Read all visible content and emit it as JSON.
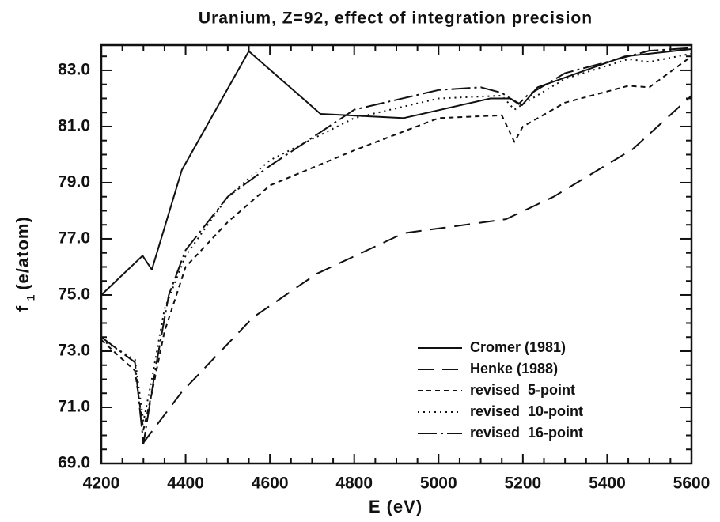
{
  "chart_data": {
    "type": "line",
    "title": "Uranium, Z=92, effect of integration precision",
    "xlabel": "E (eV)",
    "ylabel": [
      "f",
      "1",
      "(e/atom)"
    ],
    "xlim": [
      4200,
      5600
    ],
    "ylim": [
      69.0,
      83.9
    ],
    "xticks": [
      4200,
      4400,
      4600,
      4800,
      5000,
      5200,
      5400,
      5600
    ],
    "yticks": [
      {
        "value": 69,
        "label": "69.0"
      },
      {
        "value": 71,
        "label": "71.0"
      },
      {
        "value": 73,
        "label": "73.0"
      },
      {
        "value": 75,
        "label": "75.0"
      },
      {
        "value": 77,
        "label": "77.0"
      },
      {
        "value": 79,
        "label": "79.0"
      },
      {
        "value": 81,
        "label": "81.0"
      },
      {
        "value": 83,
        "label": "83.0"
      }
    ],
    "legend": "lower right",
    "series": [
      {
        "name": "Cromer (1981)",
        "color": "#111111",
        "dash": "none",
        "x": [
          4200,
          4298,
          4320,
          4391,
          4550,
          4720,
          4917,
          5123,
          5170,
          5198,
          5235,
          5442,
          5600
        ],
        "values": [
          75.0,
          76.4,
          75.9,
          79.45,
          83.68,
          81.45,
          81.3,
          82.0,
          82.0,
          81.76,
          82.4,
          83.5,
          83.76
        ]
      },
      {
        "name": "Henke (1988)",
        "color": "#111111",
        "dash": "20 11",
        "x": [
          4298,
          4391,
          4560,
          4710,
          4917,
          5160,
          5273,
          5461,
          5600
        ],
        "values": [
          69.7,
          71.55,
          74.2,
          75.75,
          77.2,
          77.7,
          78.5,
          80.2,
          82.1
        ]
      },
      {
        "name": "revised  5-point",
        "color": "#111111",
        "dash": "6 5",
        "x": [
          4200,
          4280,
          4300,
          4320,
          4350,
          4400,
          4500,
          4600,
          4800,
          5000,
          5150,
          5180,
          5200,
          5300,
          5450,
          5500,
          5600
        ],
        "values": [
          73.4,
          72.3,
          70.2,
          71.5,
          73.7,
          76.0,
          77.6,
          78.9,
          80.15,
          81.3,
          81.4,
          80.45,
          81.0,
          81.85,
          82.45,
          82.4,
          83.5
        ]
      },
      {
        "name": "revised  10-point",
        "color": "#111111",
        "dash": "2 5",
        "x": [
          4200,
          4280,
          4300,
          4320,
          4350,
          4400,
          4500,
          4600,
          4800,
          5000,
          5150,
          5180,
          5200,
          5300,
          5450,
          5500,
          5600
        ],
        "values": [
          73.4,
          72.7,
          70.5,
          72.0,
          74.5,
          76.4,
          78.5,
          79.8,
          81.3,
          82.0,
          82.1,
          81.6,
          81.8,
          82.7,
          83.4,
          83.3,
          83.6
        ]
      },
      {
        "name": "revised  16-point",
        "color": "#111111",
        "dash": "24 5 3 5",
        "x": [
          4200,
          4280,
          4300,
          4330,
          4360,
          4400,
          4500,
          4600,
          4800,
          5000,
          5100,
          5150,
          5190,
          5210,
          5300,
          5450,
          5500,
          5600
        ],
        "values": [
          73.5,
          72.6,
          69.7,
          72.5,
          75.0,
          76.6,
          78.5,
          79.6,
          81.6,
          82.3,
          82.4,
          82.2,
          81.8,
          82.1,
          82.9,
          83.5,
          83.7,
          83.8
        ]
      }
    ]
  }
}
